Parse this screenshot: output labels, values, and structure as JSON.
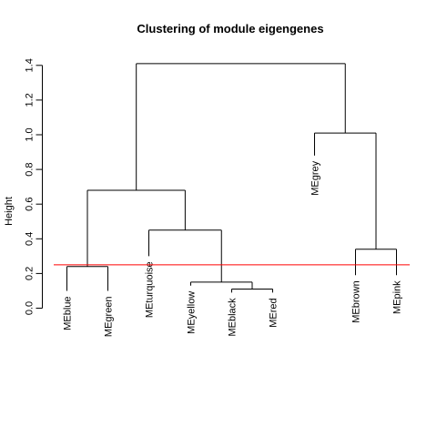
{
  "chart_data": {
    "type": "dendrogram",
    "title": "Clustering of module eigengenes",
    "ylabel": "Height",
    "ylim": [
      0,
      1.45
    ],
    "yticks": [
      0.0,
      0.2,
      0.4,
      0.6,
      0.8,
      1.0,
      1.2,
      1.4
    ],
    "ytick_labels": [
      "0.0",
      "0.2",
      "0.4",
      "0.6",
      "0.8",
      "1.0",
      "1.2",
      "1.4"
    ],
    "leaves": [
      {
        "label": "MEblue",
        "height": 0.1
      },
      {
        "label": "MEgreen",
        "height": 0.1
      },
      {
        "label": "MEturquoise",
        "height": 0.3
      },
      {
        "label": "MEyellow",
        "height": 0.13
      },
      {
        "label": "MEblack",
        "height": 0.09
      },
      {
        "label": "MEred",
        "height": 0.09
      },
      {
        "label": "MEgrey",
        "height": 0.88
      },
      {
        "label": "MEbrown",
        "height": 0.19
      },
      {
        "label": "MEpink",
        "height": 0.19
      }
    ],
    "merges": [
      {
        "left": "MEblack",
        "right": "MEred",
        "height": 0.11
      },
      {
        "left": "MEyellow",
        "right": [
          "MEblack",
          "MEred"
        ],
        "height": 0.15
      },
      {
        "left": "MEblue",
        "right": "MEgreen",
        "height": 0.24
      },
      {
        "left": "MEbrown",
        "right": "MEpink",
        "height": 0.34
      },
      {
        "left": "MEturquoise",
        "right": [
          "MEyellow",
          "MEblack",
          "MEred"
        ],
        "height": 0.45
      },
      {
        "left": [
          "MEblue",
          "MEgreen"
        ],
        "right": [
          "MEturquoise",
          "MEyellow",
          "MEblack",
          "MEred"
        ],
        "height": 0.68
      },
      {
        "left": "MEgrey",
        "right": [
          "MEbrown",
          "MEpink"
        ],
        "height": 1.01
      },
      {
        "left": [
          "MEblue",
          "MEgreen",
          "MEturquoise",
          "MEyellow",
          "MEblack",
          "MEred"
        ],
        "right": [
          "MEgrey",
          "MEbrown",
          "MEpink"
        ],
        "height": 1.41
      }
    ],
    "cut_line": {
      "height": 0.25,
      "color": "#ff0000"
    },
    "grid": false
  }
}
